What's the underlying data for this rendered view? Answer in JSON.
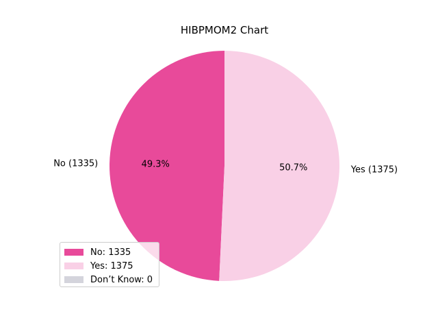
{
  "chart_data": {
    "type": "pie",
    "title": "HIBPMOM2 Chart",
    "slices": [
      {
        "label": "No (1335)",
        "value": 1335,
        "percent_label": "49.3%",
        "color": "#e84a9a"
      },
      {
        "label": "Yes (1375)",
        "value": 1375,
        "percent_label": "50.7%",
        "color": "#f9d0e6"
      }
    ],
    "legend": {
      "placement": "lower-left",
      "entries": [
        {
          "label": "No: 1335",
          "color": "#e84a9a"
        },
        {
          "label": "Yes: 1375",
          "color": "#f9d0e6"
        },
        {
          "label": "Don’t Know: 0",
          "color": "#d4d4dc"
        }
      ]
    }
  }
}
